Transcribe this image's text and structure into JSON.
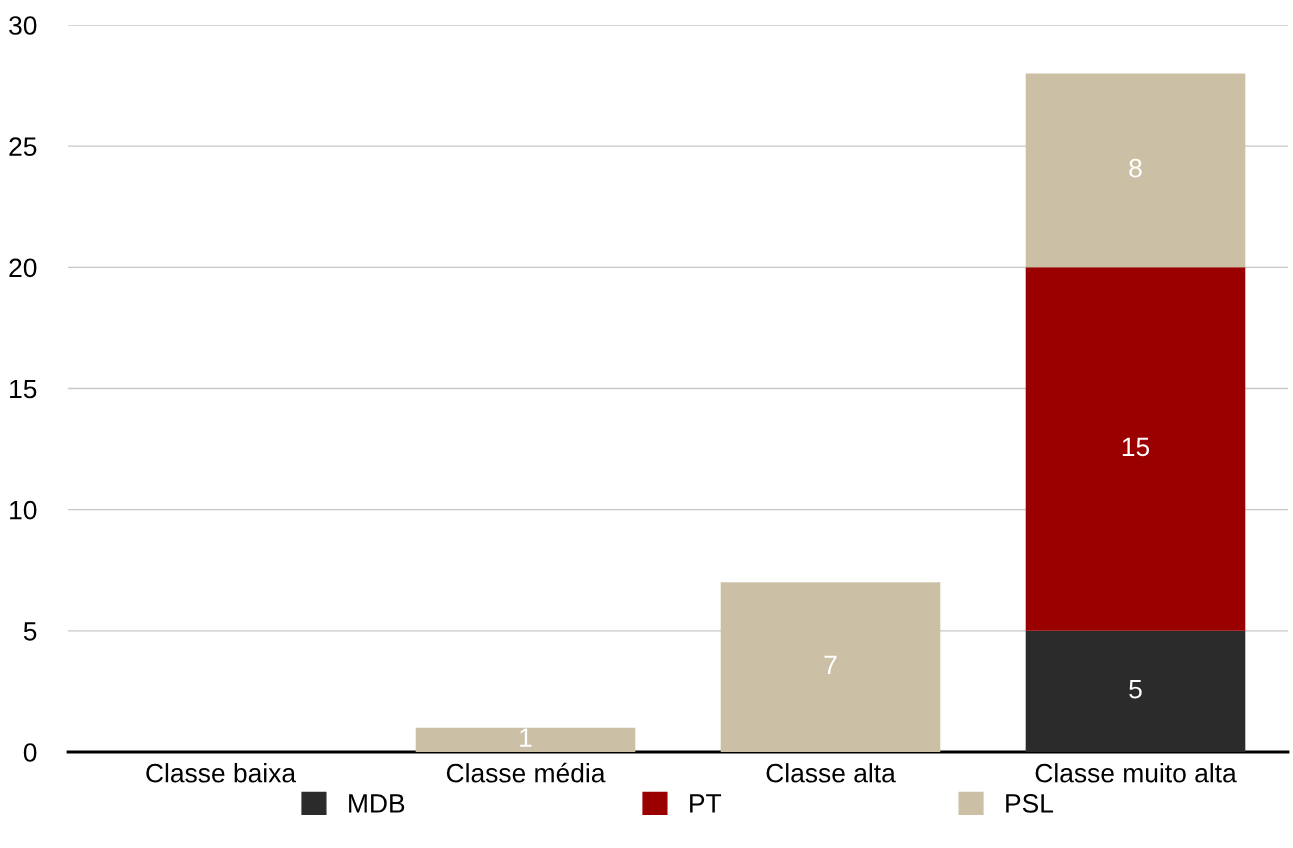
{
  "chart_data": {
    "type": "bar",
    "stacked": true,
    "categories": [
      "Classe baixa",
      "Classe média",
      "Classe alta",
      "Classe muito alta"
    ],
    "series": [
      {
        "name": "MDB",
        "color": "#2b2b2b",
        "values": [
          0,
          0,
          0,
          5
        ],
        "value_labels": [
          null,
          null,
          null,
          "5"
        ]
      },
      {
        "name": "PT",
        "color": "#9b0000",
        "values": [
          0,
          0,
          0,
          15
        ],
        "value_labels": [
          null,
          null,
          null,
          "15"
        ]
      },
      {
        "name": "PSL",
        "color": "#cbc0a6",
        "values": [
          0,
          1,
          7,
          8
        ],
        "value_labels": [
          null,
          "1",
          "7",
          "8"
        ]
      }
    ],
    "ylim": [
      0,
      30
    ],
    "yticks": [
      0,
      5,
      10,
      15,
      20,
      25,
      30
    ],
    "grid": "y",
    "legend": "bottom"
  }
}
